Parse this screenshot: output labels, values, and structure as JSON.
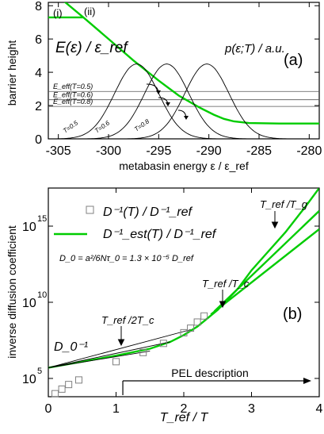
{
  "chart_data": [
    {
      "type": "line",
      "panel_label": "(a)",
      "xlabel": "metabasin energy  ε / ε_ref",
      "ylabel": "barrier height",
      "xlim": [
        -306,
        -279
      ],
      "ylim": [
        0,
        8.2
      ],
      "x_ticks": [
        -305,
        -300,
        -295,
        -290,
        -285,
        -280
      ],
      "y_ticks": [
        0,
        2,
        4,
        6,
        8
      ],
      "y_tick_labels": [
        "0",
        "2",
        "4",
        "6",
        "8"
      ],
      "grid": false,
      "annotations": {
        "e_label": "E(ε) / ε_ref",
        "p_label": "p(ε;T) / a.u.",
        "curve_i": "(i)",
        "curve_ii": "(ii)",
        "eeff": [
          {
            "label": "E_eff(T=0.5)",
            "y": 2.85
          },
          {
            "label": "E_eff(T=0.6)",
            "y": 2.35
          },
          {
            "label": "E_eff(T=0.8)",
            "y": 1.95
          }
        ],
        "dist_labels": [
          "T=0.5",
          "T=0.6",
          "T=0.8"
        ]
      },
      "series": [
        {
          "name": "",
          "color": "#00cc00",
          "x": [
            -306,
            -302.5
          ],
          "y": [
            7.3,
            7.3
          ]
        },
        {
          "name": "",
          "color": "#00cc00",
          "x": [
            -304.5,
            -302.5,
            -300,
            -297.5,
            -295,
            -293,
            -291,
            -289.5,
            -288.5,
            -287.5,
            -286,
            -283,
            -280,
            -279
          ],
          "y": [
            8.3,
            7.3,
            6.0,
            4.7,
            3.5,
            2.6,
            1.9,
            1.45,
            1.2,
            1.05,
            0.95,
            0.92,
            0.92,
            0.92
          ]
        },
        {
          "name": "",
          "color": "#000000",
          "peak_x": -297.2,
          "peak_y": 4.5,
          "width": 2.2
        },
        {
          "name": "",
          "color": "#000000",
          "peak_x": -294.2,
          "peak_y": 4.5,
          "width": 2.2
        },
        {
          "name": "",
          "color": "#000000",
          "peak_x": -290.2,
          "peak_y": 4.5,
          "width": 2.2
        }
      ]
    },
    {
      "type": "line",
      "panel_label": "(b)",
      "xlabel": "T_ref / T",
      "ylabel": "inverse diffusion coefficient",
      "xlim": [
        0,
        4
      ],
      "ylim_log10": [
        3.8,
        17.5
      ],
      "x_ticks": [
        0,
        1,
        2,
        3,
        4
      ],
      "y_ticks_log10": [
        5,
        10,
        15
      ],
      "y_tick_labels": [
        "10",
        "10",
        "10"
      ],
      "y_tick_exponents": [
        "5",
        "10",
        "15"
      ],
      "grid": false,
      "legend": {
        "placement": "top-left",
        "entries": [
          {
            "marker": "square",
            "label": "D⁻¹(T) / D⁻¹_ref"
          },
          {
            "marker": "line",
            "color": "#00cc00",
            "label": "D⁻¹_est(T) / D⁻¹_ref"
          }
        ]
      },
      "annotations": {
        "d0_formula": "D_0 = a²/6Nτ_0 = 1.3 × 10⁻⁵ D_ref",
        "d0_label": "D_0⁻¹",
        "tref_2tc": "T_ref /2T_c",
        "tref_tc": "T_ref /T_c",
        "tref_tg": "T_ref /T_g",
        "pel": "PEL description",
        "pel_arrow_x": [
          1.1,
          4.0
        ]
      },
      "markers": {
        "x": [
          0.1,
          0.2,
          0.3,
          0.45,
          1.0,
          1.4,
          1.7,
          2.0,
          2.1,
          2.2,
          2.3
        ],
        "y_log10": [
          4.0,
          4.3,
          4.6,
          4.9,
          6.1,
          6.7,
          7.3,
          8.0,
          8.3,
          8.7,
          9.1
        ]
      },
      "series": [
        {
          "name": "",
          "color": "#00cc00",
          "x": [
            0,
            0.5,
            1.0,
            1.5,
            1.8,
            2.0,
            2.2,
            2.5,
            2.8,
            3.0,
            3.2,
            3.5,
            3.8,
            4.0
          ],
          "y_log10": [
            5.7,
            6.1,
            6.5,
            6.95,
            7.4,
            7.85,
            8.4,
            9.5,
            10.9,
            12.1,
            13.1,
            14.6,
            16.3,
            17.5
          ]
        },
        {
          "name": "",
          "color": "#00cc00",
          "x": [
            2.4,
            4.0
          ],
          "y_log10": [
            9.2,
            14.8
          ]
        },
        {
          "name": "",
          "color": "#00cc00",
          "x": [
            2.45,
            4.0
          ],
          "y_log10": [
            9.4,
            16.0
          ]
        },
        {
          "name": "",
          "color": "#000000",
          "x": [
            0,
            2.1
          ],
          "y_log10": [
            5.7,
            8.2
          ]
        },
        {
          "name": "",
          "color": "#000000",
          "x": [
            0,
            1.8
          ],
          "y_log10": [
            5.7,
            7.4
          ]
        },
        {
          "name": "",
          "color": "#000000",
          "x": [
            0,
            1.5
          ],
          "y_log10": [
            5.7,
            6.8
          ]
        }
      ]
    }
  ]
}
